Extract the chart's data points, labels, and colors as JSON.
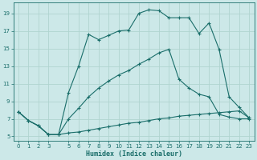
{
  "xlabel": "Humidex (Indice chaleur)",
  "bg_color": "#cce8e8",
  "line_color": "#1a6e6a",
  "grid_color": "#b0d4d0",
  "xlim": [
    -0.5,
    23.5
  ],
  "ylim": [
    4.5,
    20.2
  ],
  "xticks": [
    0,
    1,
    2,
    3,
    5,
    6,
    7,
    8,
    9,
    10,
    11,
    12,
    13,
    14,
    15,
    16,
    17,
    18,
    19,
    20,
    21,
    22,
    23
  ],
  "yticks": [
    5,
    7,
    9,
    11,
    13,
    15,
    17,
    19
  ],
  "line1_x": [
    0,
    1,
    2,
    3,
    4,
    5,
    6,
    7,
    8,
    9,
    10,
    11,
    12,
    13,
    14,
    15,
    16,
    17,
    18,
    19,
    20,
    21,
    22,
    23
  ],
  "line1_y": [
    7.8,
    6.8,
    6.2,
    5.2,
    5.2,
    5.4,
    5.5,
    5.7,
    5.9,
    6.1,
    6.3,
    6.5,
    6.6,
    6.8,
    7.0,
    7.1,
    7.3,
    7.4,
    7.5,
    7.6,
    7.7,
    7.8,
    7.9,
    7.1
  ],
  "line2_x": [
    0,
    1,
    2,
    3,
    4,
    5,
    6,
    7,
    8,
    9,
    10,
    11,
    12,
    13,
    14,
    15,
    16,
    17,
    18,
    19,
    20,
    21,
    22,
    23
  ],
  "line2_y": [
    7.8,
    6.8,
    6.2,
    5.2,
    5.2,
    7.0,
    8.2,
    9.5,
    10.5,
    11.3,
    12.0,
    12.5,
    13.2,
    13.8,
    14.5,
    14.9,
    11.5,
    10.5,
    9.8,
    9.5,
    7.5,
    7.2,
    7.0,
    7.0
  ],
  "line3_x": [
    0,
    1,
    2,
    3,
    4,
    5,
    6,
    7,
    8,
    9,
    10,
    11,
    12,
    13,
    14,
    15,
    16,
    17,
    18,
    19,
    20,
    21,
    22,
    23
  ],
  "line3_y": [
    7.8,
    6.8,
    6.2,
    5.2,
    5.2,
    10.0,
    13.0,
    16.6,
    16.0,
    16.5,
    17.0,
    17.1,
    19.0,
    19.4,
    19.3,
    18.5,
    18.5,
    18.5,
    16.7,
    17.9,
    14.9,
    9.5,
    8.3,
    7.1
  ]
}
